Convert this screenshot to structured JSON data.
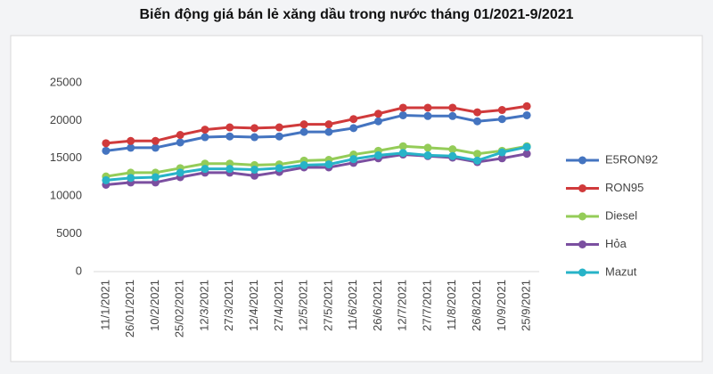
{
  "chart_data": {
    "type": "line",
    "title": "Biến động giá bán lẻ xăng dầu trong nước tháng 01/2021-9/2021",
    "categories": [
      "11/1/2021",
      "26/01/2021",
      "10/2/2021",
      "25/02/2021",
      "12/3/2021",
      "27/3/2021",
      "12/4/2021",
      "27/4/2021",
      "12/5/2021",
      "27/5/2021",
      "11/6/2021",
      "26/6/2021",
      "12/7/2021",
      "27/7/2021",
      "11/8/2021",
      "26/8/2021",
      "10/9/2021",
      "25/9/2021"
    ],
    "series": [
      {
        "name": "E5RON92",
        "color": "#4474c0",
        "values": [
          16000,
          16400,
          16400,
          17100,
          17800,
          17900,
          17800,
          17900,
          18500,
          18500,
          19000,
          19900,
          20700,
          20600,
          20600,
          19900,
          20200,
          20700
        ]
      },
      {
        "name": "RON95",
        "color": "#d03a3b",
        "values": [
          17000,
          17300,
          17300,
          18100,
          18800,
          19100,
          19000,
          19100,
          19500,
          19500,
          20200,
          20900,
          21700,
          21700,
          21700,
          21100,
          21400,
          21900
        ]
      },
      {
        "name": "Diesel",
        "color": "#94cc58",
        "values": [
          12600,
          13100,
          13100,
          13700,
          14300,
          14300,
          14100,
          14200,
          14700,
          14800,
          15500,
          16000,
          16600,
          16400,
          16200,
          15600,
          16000,
          16600
        ]
      },
      {
        "name": "Hỏa",
        "color": "#7b4fa0",
        "values": [
          11500,
          11800,
          11800,
          12500,
          13100,
          13100,
          12700,
          13200,
          13800,
          13800,
          14400,
          15000,
          15500,
          15300,
          15100,
          14500,
          15000,
          15600
        ]
      },
      {
        "name": "Mazut",
        "color": "#27b3c8",
        "values": [
          12100,
          12400,
          12500,
          13100,
          13600,
          13600,
          13500,
          13700,
          14100,
          14200,
          14900,
          15400,
          15700,
          15400,
          15300,
          14700,
          15800,
          16500
        ]
      }
    ],
    "ylim": [
      0,
      25000
    ],
    "yticks": [
      0,
      5000,
      10000,
      15000,
      20000,
      25000
    ],
    "legend": "right"
  }
}
